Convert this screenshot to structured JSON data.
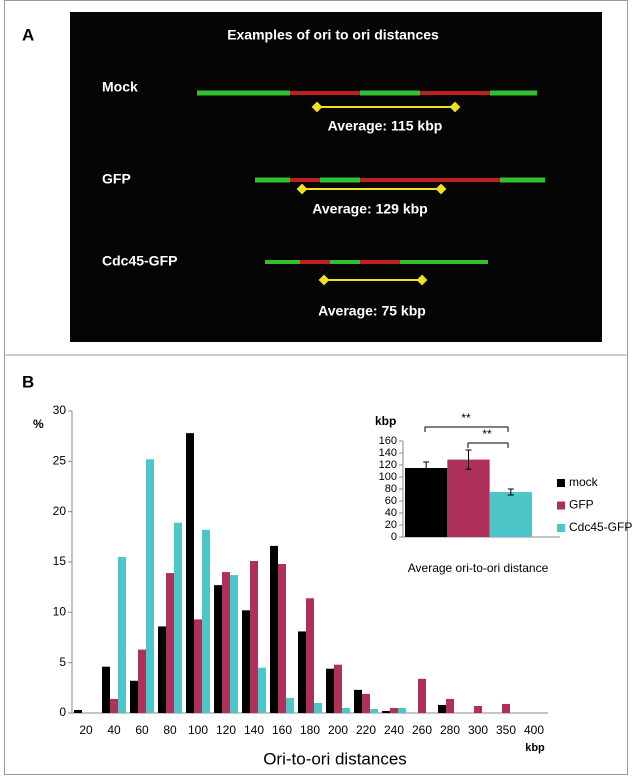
{
  "panel_a": {
    "label": "A",
    "title": "Examples of  ori to ori distances",
    "samples": [
      {
        "name": "Mock",
        "average": "Average: 115 kbp"
      },
      {
        "name": "GFP",
        "average": "Average: 129 kbp"
      },
      {
        "name": "Cdc45-GFP",
        "average": "Average: 75 kbp"
      }
    ]
  },
  "panel_b": {
    "label": "B"
  },
  "chart_data": [
    {
      "type": "bar",
      "x_label": "Ori-to-ori distances",
      "x_unit": "kbp",
      "y_label": "%",
      "categories": [
        "20",
        "40",
        "60",
        "80",
        "100",
        "120",
        "140",
        "160",
        "180",
        "200",
        "220",
        "240",
        "260",
        "280",
        "300",
        "350",
        "400"
      ],
      "series": [
        {
          "name": "mock",
          "color": "#000000",
          "values": [
            0.3,
            4.6,
            3.2,
            8.6,
            27.8,
            12.7,
            10.2,
            16.6,
            8.1,
            4.4,
            2.3,
            0.2,
            0,
            0.8,
            0,
            0,
            0
          ]
        },
        {
          "name": "GFP",
          "color": "#b0305c",
          "values": [
            0,
            1.4,
            6.3,
            13.9,
            9.3,
            14.0,
            15.1,
            14.8,
            11.4,
            4.8,
            1.9,
            0.5,
            3.4,
            1.4,
            0.7,
            0.9,
            0
          ]
        },
        {
          "name": "Cdc45-GFP",
          "color": "#4cc6c8",
          "values": [
            0,
            15.5,
            25.2,
            18.9,
            18.2,
            13.7,
            4.5,
            1.5,
            1.0,
            0.5,
            0.4,
            0.5,
            0,
            0,
            0,
            0,
            0
          ]
        }
      ],
      "ylim": [
        0,
        30
      ],
      "yticks": [
        0,
        5,
        10,
        15,
        20,
        25,
        30
      ],
      "legend": "right"
    },
    {
      "type": "bar",
      "x_label": "Average ori-to-ori distance",
      "y_label": "kbp",
      "series": [
        {
          "color": "#000000",
          "values": [
            115
          ],
          "errors": [
            10
          ]
        },
        {
          "color": "#b0305c",
          "values": [
            129
          ],
          "errors": [
            16
          ]
        },
        {
          "color": "#4cc6c8",
          "values": [
            75
          ],
          "errors": [
            5
          ]
        }
      ],
      "annotations": [
        "**",
        "**"
      ],
      "ylim": [
        0,
        160
      ],
      "yticks": [
        0,
        20,
        40,
        60,
        80,
        100,
        120,
        140,
        160
      ]
    }
  ]
}
